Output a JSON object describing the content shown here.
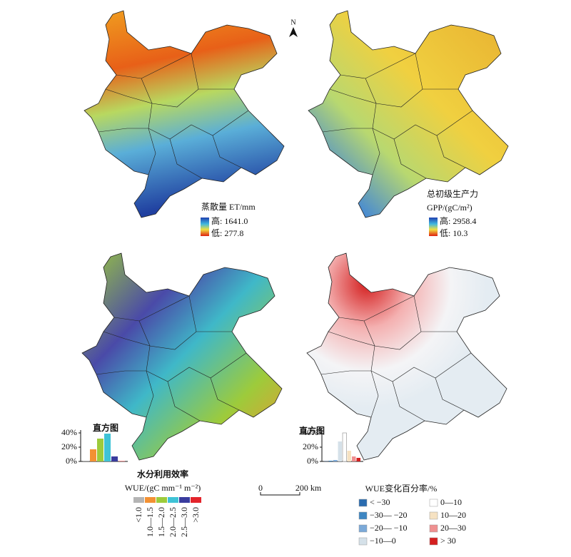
{
  "north_arrow": "N",
  "scale_bar": {
    "start": "0",
    "end": "200 km"
  },
  "panels": [
    {
      "title": "蒸散量 ET/mm",
      "high": "高: 1641.0",
      "low": "低: 277.8"
    },
    {
      "title": "总初级生产力",
      "subtitle": "GPP/(gC/m²)",
      "high": "高: 2958.4",
      "low": "低: 10.3"
    },
    {
      "histogram": {
        "title": "直方图",
        "values": [
          1,
          17,
          32,
          39,
          7,
          0.5
        ],
        "ylim": [
          0,
          40
        ],
        "yticks": [
          {
            "value": 0,
            "label": "0%"
          },
          {
            "value": 20,
            "label": "20%"
          },
          {
            "value": 40,
            "label": "40%"
          }
        ]
      },
      "legend": {
        "title": "水分利用效率",
        "subtitle": "WUE/(gC mm⁻¹ m⁻²)",
        "classes": [
          {
            "label": "<1.0",
            "color": "#b4b4b4"
          },
          {
            "label": "1.0—1.5",
            "color": "#f39133"
          },
          {
            "label": "1.5—2.0",
            "color": "#9dcb3b"
          },
          {
            "label": "2.0—2.5",
            "color": "#3fc3d6"
          },
          {
            "label": "2.5—3.0",
            "color": "#3a3c9e"
          },
          {
            "label": ">3.0",
            "color": "#e3242b"
          }
        ]
      }
    },
    {
      "histogram": {
        "title": "直方图",
        "values": [
          0.3,
          1,
          2,
          28,
          40,
          15,
          7,
          5
        ],
        "ylim": [
          0,
          40
        ],
        "yticks": [
          {
            "value": 0,
            "label": "0%"
          },
          {
            "value": 20,
            "label": "20%"
          },
          {
            "value": 40,
            "label": "40%"
          }
        ]
      },
      "legend": {
        "title": "WUE变化百分率/%",
        "classes": [
          {
            "label": "< −30",
            "color": "#2a6cb0"
          },
          {
            "label": "−30— −20",
            "color": "#3e86c2"
          },
          {
            "label": "−20— −10",
            "color": "#7ba9d8"
          },
          {
            "label": "−10—0",
            "color": "#d5e1e9"
          },
          {
            "label": "0—10",
            "color": "#ffffff"
          },
          {
            "label": "10—20",
            "color": "#f6e2c2"
          },
          {
            "label": "20—30",
            "color": "#ef9090"
          },
          {
            "label": "> 30",
            "color": "#d42020"
          }
        ]
      }
    }
  ]
}
